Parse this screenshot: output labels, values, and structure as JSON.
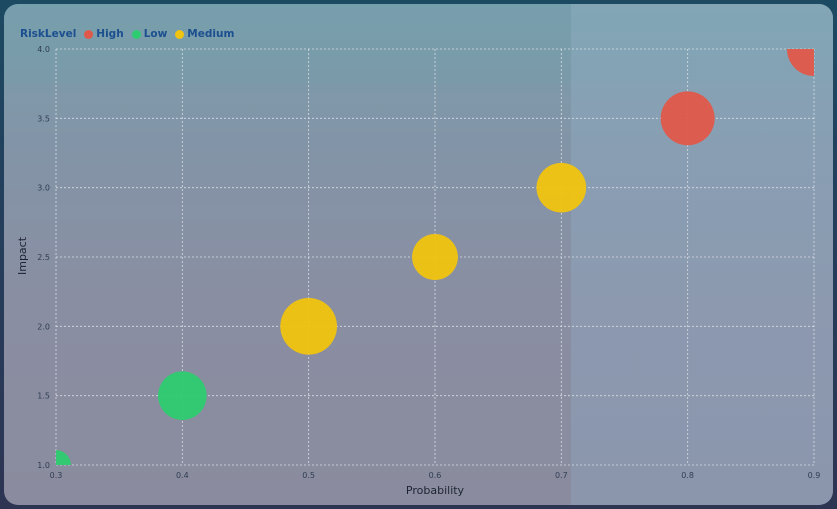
{
  "chart_data": {
    "type": "scatter",
    "xlabel": "Probability",
    "ylabel": "Impact",
    "xlim": [
      0.3,
      0.9
    ],
    "ylim": [
      1.0,
      4.0
    ],
    "xticks": [
      "0.3",
      "0.4",
      "0.5",
      "0.6",
      "0.7",
      "0.8",
      "0.9"
    ],
    "yticks": [
      "1.0",
      "1.5",
      "2.0",
      "2.5",
      "3.0",
      "3.5",
      "4.0"
    ],
    "grid": true,
    "legend": {
      "title": "RiskLevel",
      "placement": "top-left",
      "entries": [
        {
          "name": "High",
          "color": "#e0584a"
        },
        {
          "name": "Low",
          "color": "#2ecc71"
        },
        {
          "name": "Medium",
          "color": "#f1c40f"
        }
      ]
    },
    "series": [
      {
        "name": "High",
        "color": "#e0584a",
        "points": [
          {
            "x": 0.8,
            "y": 3.5,
            "size": 1.0
          },
          {
            "x": 0.9,
            "y": 4.0,
            "size": 1.0
          }
        ]
      },
      {
        "name": "Low",
        "color": "#2ecc71",
        "points": [
          {
            "x": 0.3,
            "y": 1.0,
            "size": 0.55
          },
          {
            "x": 0.4,
            "y": 1.5,
            "size": 0.9
          }
        ]
      },
      {
        "name": "Medium",
        "color": "#f1c40f",
        "points": [
          {
            "x": 0.5,
            "y": 2.0,
            "size": 1.05
          },
          {
            "x": 0.6,
            "y": 2.5,
            "size": 0.85
          },
          {
            "x": 0.7,
            "y": 3.0,
            "size": 0.92
          }
        ]
      }
    ]
  }
}
